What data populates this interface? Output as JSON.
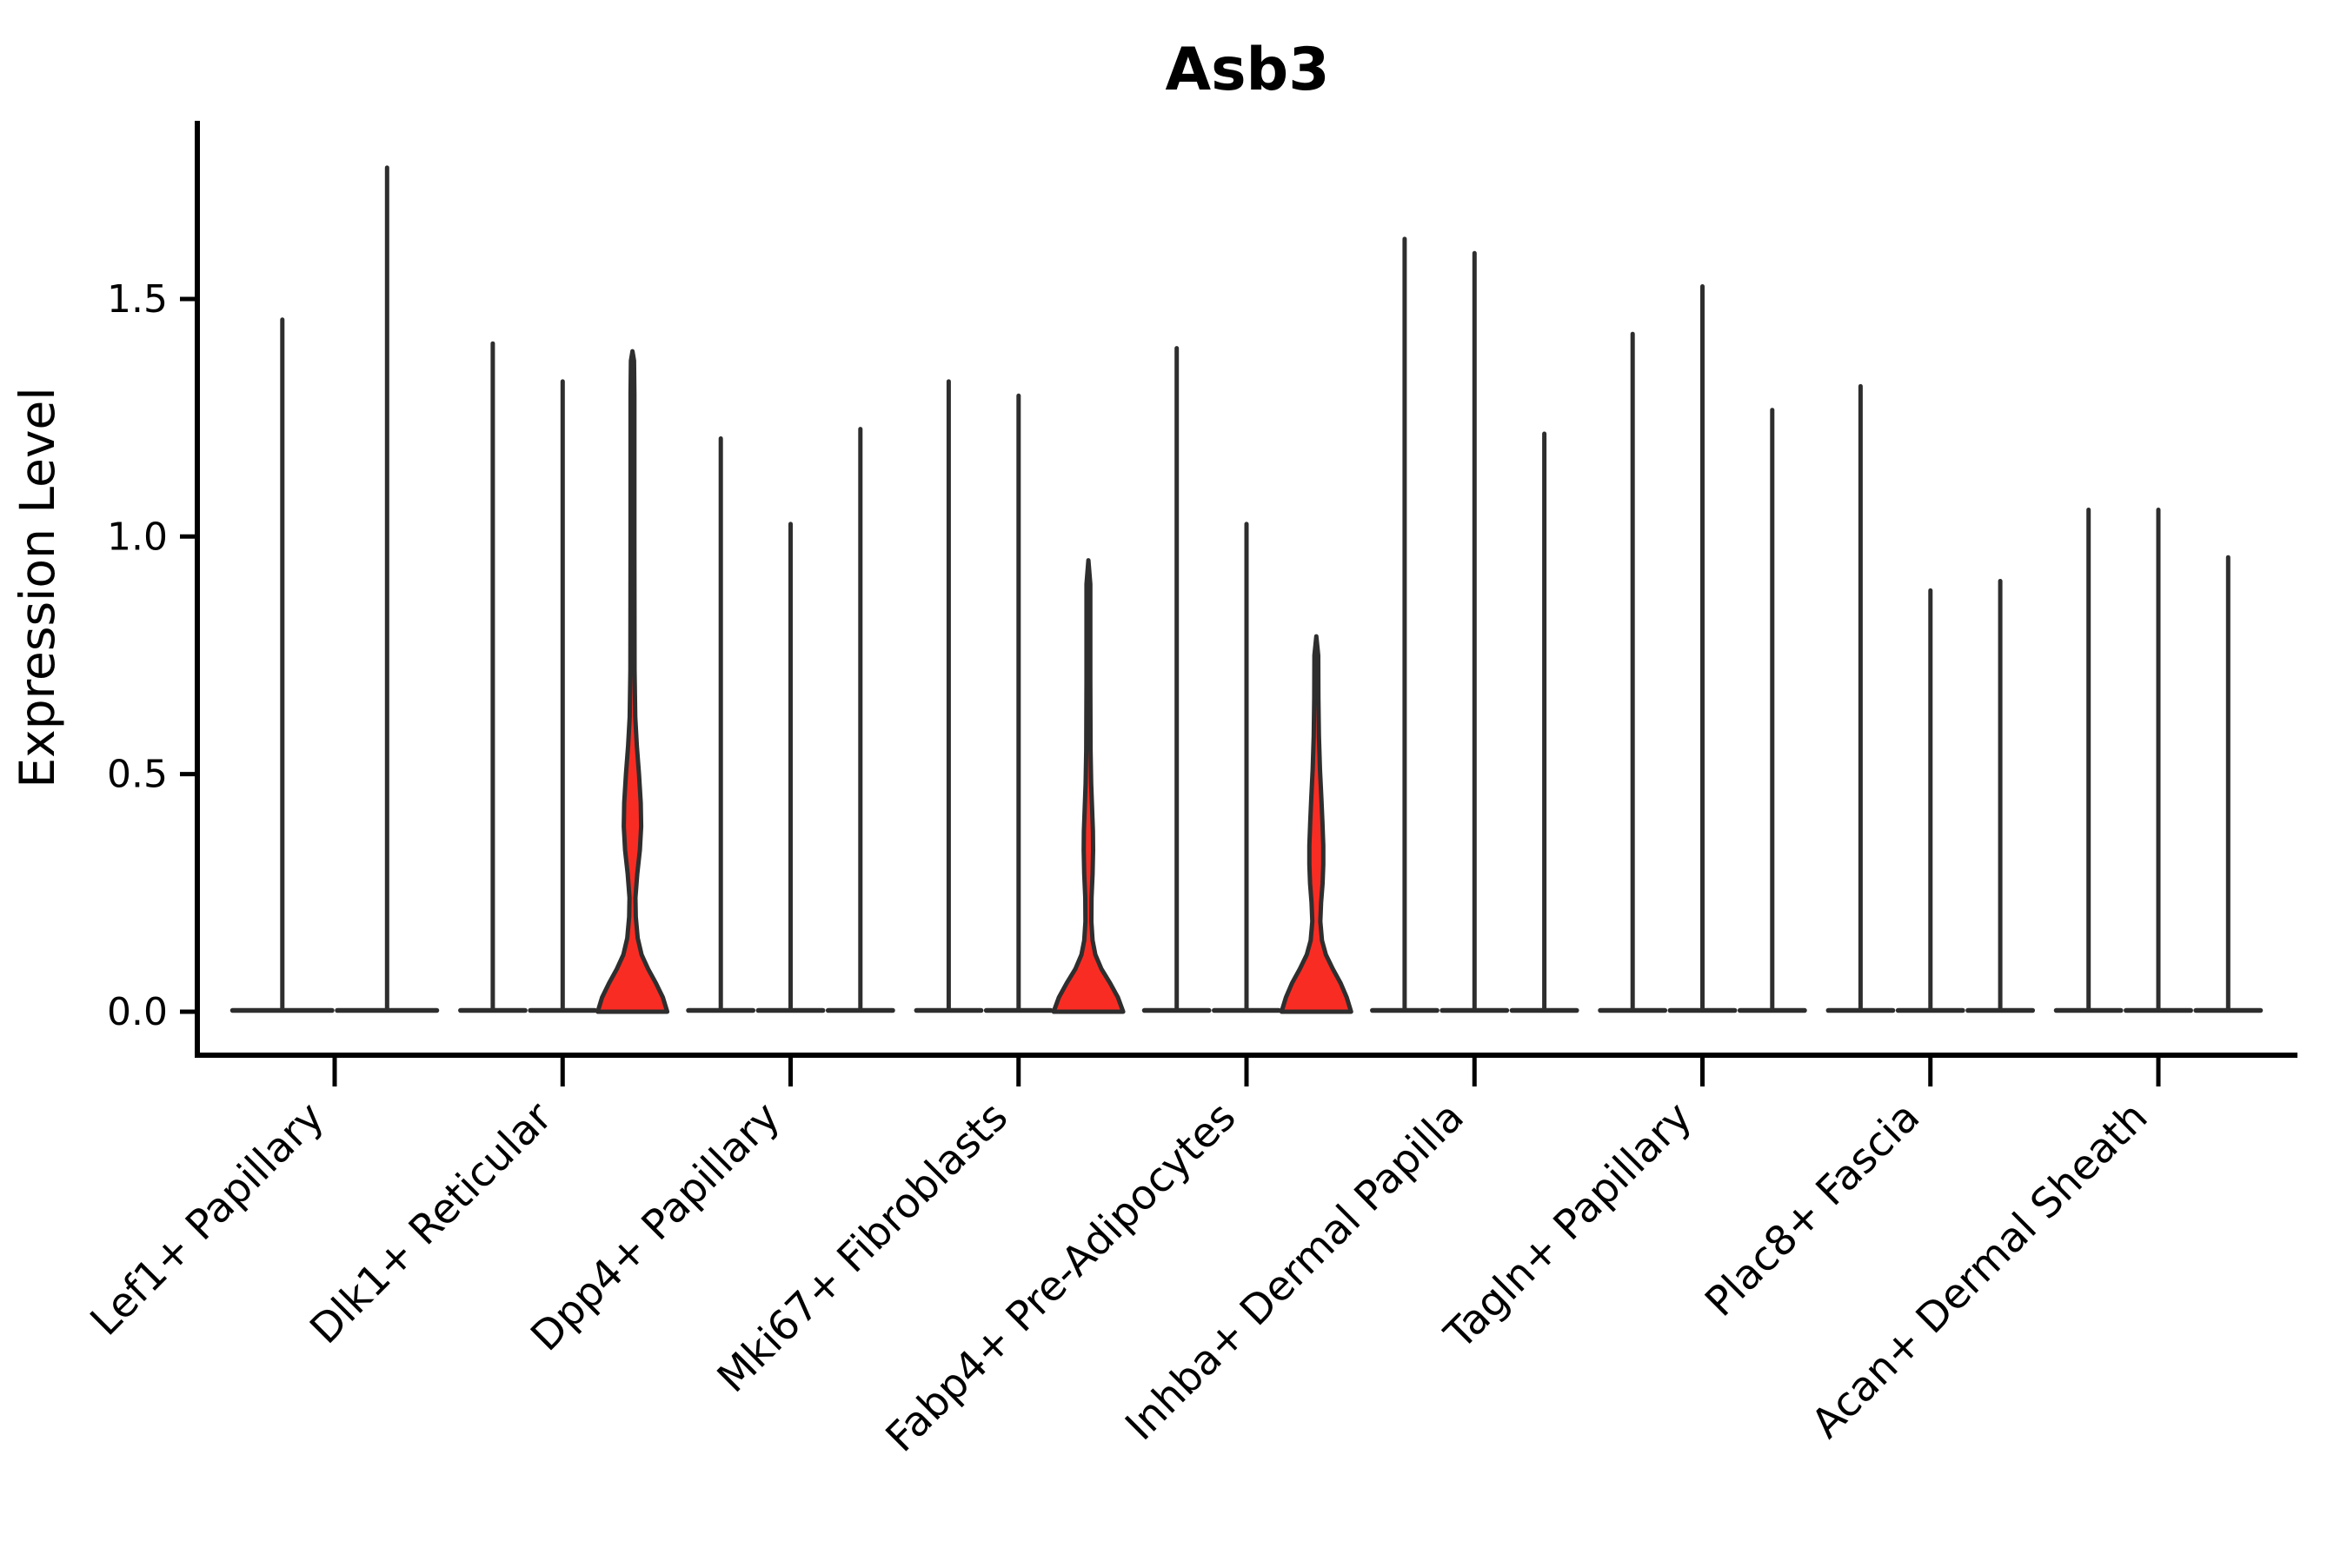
{
  "chart_data": {
    "type": "violin",
    "title": "Asb3",
    "ylabel": "Expression Level",
    "xlabel": "",
    "ytick_labels": [
      "0.0",
      "0.5",
      "1.0",
      "1.5"
    ],
    "ytick_values": [
      0.0,
      0.5,
      1.0,
      1.5
    ],
    "ylim": [
      -0.088,
      1.875
    ],
    "grid": false,
    "legend_position": "none",
    "colors": {
      "violin_fill": "#f92c23",
      "violin_stroke": "#2e2e2e",
      "axis": "#000000",
      "text": "#000000",
      "background": "#ffffff"
    },
    "categories": [
      "Lef1+ Papillary",
      "Dlk1+ Reticular",
      "Dpp4+ Papillary",
      "Mki67+ Fibroblasts",
      "Fabp4+ Pre-Adipocytes",
      "Inhba+ Dermal Papilla",
      "Tagln+ Papillary",
      "Plac8+ Fascia",
      "Acan+ Dermal Sheath"
    ],
    "groups": [
      {
        "label": "Lef1+ Papillary",
        "violins": [
          {
            "max": 1.46,
            "shape": "spike"
          },
          {
            "max": 1.78,
            "shape": "spike"
          }
        ]
      },
      {
        "label": "Dlk1+ Reticular",
        "violins": [
          {
            "max": 1.41,
            "shape": "spike"
          },
          {
            "max": 1.33,
            "shape": "spike"
          },
          {
            "max": 1.39,
            "shape": "bulge",
            "profile": [
              [
                0,
                40
              ],
              [
                0.03,
                35
              ],
              [
                0.06,
                27
              ],
              [
                0.09,
                18
              ],
              [
                0.12,
                10.5
              ],
              [
                0.155,
                6
              ],
              [
                0.2,
                3.8
              ],
              [
                0.24,
                3.4
              ],
              [
                0.29,
                5.5
              ],
              [
                0.34,
                8.5
              ],
              [
                0.39,
                10
              ],
              [
                0.44,
                9.5
              ],
              [
                0.5,
                7.5
              ],
              [
                0.56,
                5
              ],
              [
                0.62,
                3.2
              ],
              [
                0.72,
                2.4
              ],
              [
                1.0,
                2.2
              ],
              [
                1.3,
                2.2
              ],
              [
                1.37,
                1.8
              ]
            ]
          }
        ]
      },
      {
        "label": "Dpp4+ Papillary",
        "violins": [
          {
            "max": 1.21,
            "shape": "spike"
          },
          {
            "max": 1.03,
            "shape": "spike"
          },
          {
            "max": 1.23,
            "shape": "spike"
          }
        ]
      },
      {
        "label": "Mki67+ Fibroblasts",
        "violins": [
          {
            "max": 1.33,
            "shape": "spike"
          },
          {
            "max": 1.3,
            "shape": "spike"
          },
          {
            "max": 0.95,
            "shape": "bulge",
            "profile": [
              [
                0,
                40
              ],
              [
                0.03,
                34
              ],
              [
                0.06,
                25
              ],
              [
                0.09,
                15
              ],
              [
                0.12,
                8
              ],
              [
                0.15,
                4.8
              ],
              [
                0.19,
                3.4
              ],
              [
                0.24,
                3.6
              ],
              [
                0.29,
                4.8
              ],
              [
                0.34,
                5.4
              ],
              [
                0.38,
                5.2
              ],
              [
                0.43,
                4.2
              ],
              [
                0.48,
                3.2
              ],
              [
                0.55,
                2.5
              ],
              [
                0.7,
                2.2
              ],
              [
                0.9,
                2.2
              ]
            ]
          }
        ]
      },
      {
        "label": "Fabp4+ Pre-Adipocytes",
        "violins": [
          {
            "max": 1.4,
            "shape": "spike"
          },
          {
            "max": 1.03,
            "shape": "spike"
          },
          {
            "max": 0.79,
            "shape": "bulge",
            "profile": [
              [
                0,
                40
              ],
              [
                0.03,
                35
              ],
              [
                0.06,
                28
              ],
              [
                0.09,
                19
              ],
              [
                0.12,
                11
              ],
              [
                0.15,
                6.5
              ],
              [
                0.19,
                4.6
              ],
              [
                0.23,
                5.5
              ],
              [
                0.27,
                7.2
              ],
              [
                0.31,
                8
              ],
              [
                0.35,
                8
              ],
              [
                0.4,
                7
              ],
              [
                0.45,
                5.8
              ],
              [
                0.51,
                4.2
              ],
              [
                0.58,
                3
              ],
              [
                0.66,
                2.4
              ],
              [
                0.75,
                2.2
              ]
            ]
          }
        ]
      },
      {
        "label": "Inhba+ Dermal Papilla",
        "violins": [
          {
            "max": 1.63,
            "shape": "spike"
          },
          {
            "max": 1.6,
            "shape": "spike"
          },
          {
            "max": 1.22,
            "shape": "spike"
          }
        ]
      },
      {
        "label": "Tagln+ Papillary",
        "violins": [
          {
            "max": 1.43,
            "shape": "spike"
          },
          {
            "max": 1.53,
            "shape": "spike"
          },
          {
            "max": 1.27,
            "shape": "spike"
          }
        ]
      },
      {
        "label": "Plac8+ Fascia",
        "violins": [
          {
            "max": 1.32,
            "shape": "spike"
          },
          {
            "max": 0.89,
            "shape": "spike"
          },
          {
            "max": 0.91,
            "shape": "spike"
          }
        ]
      },
      {
        "label": "Acan+ Dermal Sheath",
        "violins": [
          {
            "max": 1.06,
            "shape": "spike"
          },
          {
            "max": 1.06,
            "shape": "spike"
          },
          {
            "max": 0.96,
            "shape": "spike"
          }
        ]
      }
    ]
  }
}
